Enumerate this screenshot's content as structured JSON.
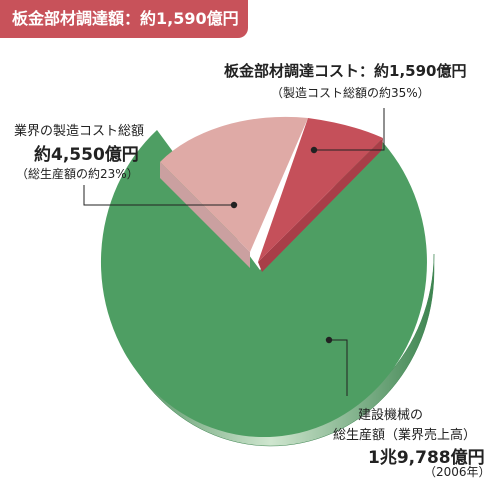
{
  "title": "板金部材調達額：約1,590億円",
  "chart_data": {
    "type": "pie",
    "unit": "億円",
    "slices": [
      {
        "id": "sheet_metal",
        "share_of_industry": 0.08,
        "color": "#c5505a",
        "label_lines": [
          "板金部材調達コスト：約1,590億円",
          "（製造コスト総額の約35%）"
        ]
      },
      {
        "id": "mfg_cost",
        "share_of_industry": 0.15,
        "color": "#dfaaa6",
        "label_lines": [
          "業界の製造コスト総額",
          "約4,550億円",
          "（総生産額の約23%）"
        ]
      },
      {
        "id": "industry_total",
        "share_of_industry": 0.77,
        "color": "#4e9e63",
        "label_lines": [
          "建設機械の",
          "総生産額（業界売上高）",
          "1兆9,788億円",
          "（2006年）"
        ]
      }
    ]
  }
}
